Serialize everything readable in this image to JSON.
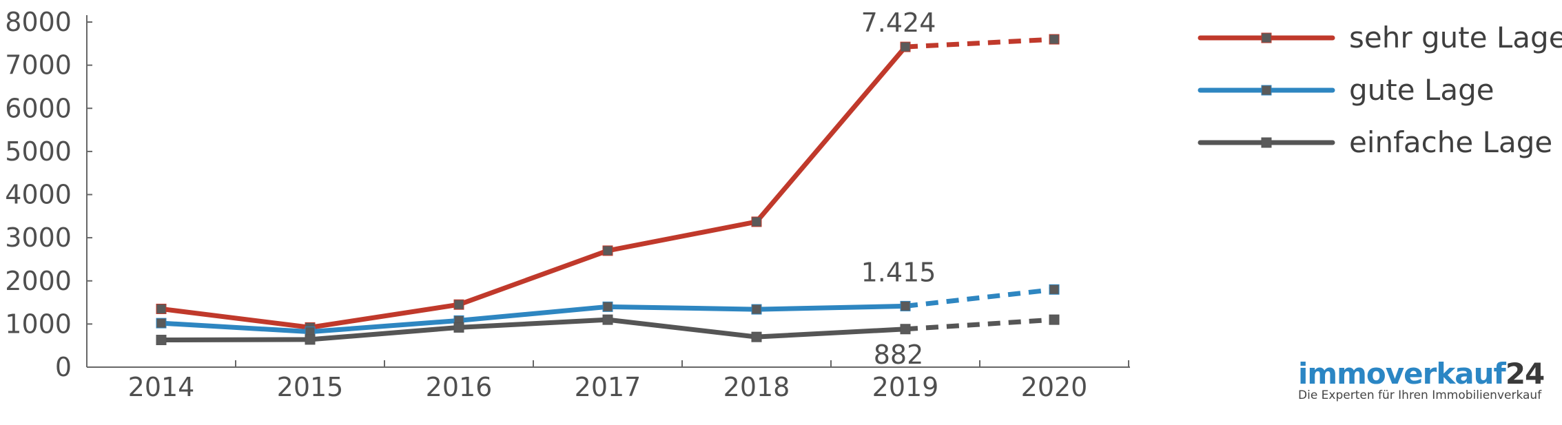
{
  "chart_data": {
    "type": "line",
    "categories": [
      "2014",
      "2015",
      "2016",
      "2017",
      "2018",
      "2019",
      "2020"
    ],
    "ylim": [
      0,
      8000
    ],
    "yticks": [
      "0",
      "1000",
      "2000",
      "3000",
      "4000",
      "5000",
      "6000",
      "7000",
      "8000"
    ],
    "forecast_from": "2019",
    "legend_position": "top-right",
    "grid": false,
    "series": [
      {
        "name": "sehr gute Lage",
        "color": "#c0392b",
        "values": [
          1350,
          920,
          1450,
          2700,
          3370,
          7424,
          7600
        ]
      },
      {
        "name": "gute Lage",
        "color": "#2e86c1",
        "values": [
          1020,
          820,
          1080,
          1400,
          1340,
          1415,
          1800
        ]
      },
      {
        "name": "einfache Lage",
        "color": "#555555",
        "values": [
          630,
          640,
          920,
          1100,
          700,
          882,
          1100
        ]
      }
    ],
    "annotations": [
      {
        "label": "7.424",
        "series": 0,
        "category": "2019"
      },
      {
        "label": "1.415",
        "series": 1,
        "category": "2019"
      },
      {
        "label": "882",
        "series": 2,
        "category": "2019"
      }
    ]
  },
  "branding": {
    "logo_part1": "immoverkauf",
    "logo_part2": "24",
    "tagline": "Die Experten für Ihren Immobilienverkauf"
  }
}
